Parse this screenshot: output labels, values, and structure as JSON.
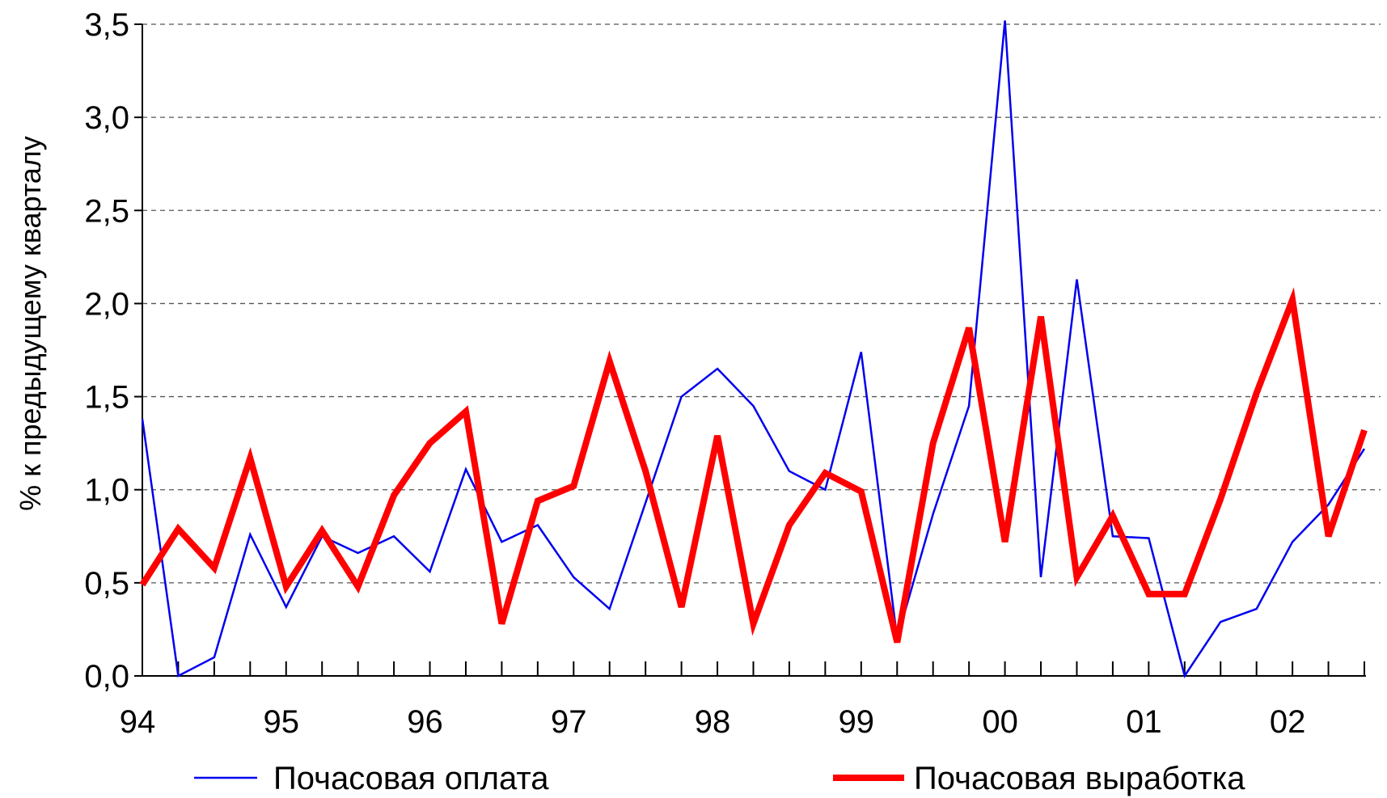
{
  "chart_data": {
    "type": "line",
    "title": "",
    "xlabel": "",
    "ylabel": "% к предыдущему кварталу",
    "ylim": [
      0,
      3.5
    ],
    "y_ticks": [
      "0,0",
      "0,5",
      "1,0",
      "1,5",
      "2,0",
      "2,5",
      "3,0",
      "3,5"
    ],
    "x_ticks": [
      "94",
      "95",
      "96",
      "97",
      "98",
      "99",
      "00",
      "01",
      "02"
    ],
    "grid": true,
    "legend_position": "bottom",
    "colors": {
      "wage": "#0000ee",
      "output": "#ff0000",
      "grid": "#555555",
      "axis": "#000000"
    },
    "x": [
      "94Q1",
      "94Q2",
      "94Q3",
      "94Q4",
      "95Q1",
      "95Q2",
      "95Q3",
      "95Q4",
      "96Q1",
      "96Q2",
      "96Q3",
      "96Q4",
      "97Q1",
      "97Q2",
      "97Q3",
      "97Q4",
      "98Q1",
      "98Q2",
      "98Q3",
      "98Q4",
      "99Q1",
      "99Q2",
      "99Q3",
      "99Q4",
      "00Q1",
      "00Q2",
      "00Q3",
      "00Q4",
      "01Q1",
      "01Q2",
      "01Q3",
      "01Q4",
      "02Q1",
      "02Q2",
      "02Q3"
    ],
    "series": [
      {
        "name": "Почасовая оплата",
        "key": "wage",
        "values": [
          1.38,
          0.0,
          0.1,
          0.76,
          0.37,
          0.75,
          0.66,
          0.75,
          0.56,
          1.11,
          0.72,
          0.81,
          0.53,
          0.36,
          0.93,
          1.5,
          1.65,
          1.45,
          1.1,
          1.0,
          1.74,
          0.2,
          0.87,
          1.45,
          3.52,
          0.53,
          2.13,
          0.75,
          0.74,
          0.0,
          0.29,
          0.36,
          0.72,
          0.92,
          1.22
        ]
      },
      {
        "name": "Почасовая выработка",
        "key": "output",
        "values": [
          0.49,
          0.79,
          0.58,
          1.17,
          0.48,
          0.78,
          0.48,
          0.97,
          1.25,
          1.42,
          0.28,
          0.94,
          1.02,
          1.69,
          1.1,
          0.37,
          1.29,
          0.28,
          0.81,
          1.09,
          0.99,
          0.18,
          1.25,
          1.87,
          0.72,
          1.93,
          0.53,
          0.86,
          0.44,
          0.44,
          0.95,
          1.52,
          2.02,
          0.75,
          1.32
        ]
      }
    ]
  }
}
